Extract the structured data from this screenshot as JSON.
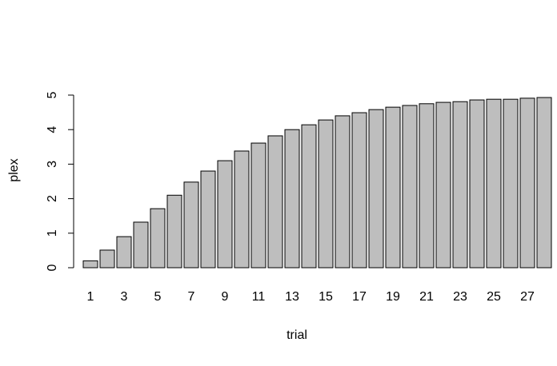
{
  "chart_data": {
    "type": "bar",
    "x_label": "trial",
    "y_label": "plex",
    "categories": [
      "1",
      null,
      "3",
      null,
      "5",
      null,
      "7",
      null,
      "9",
      null,
      "11",
      null,
      "13",
      null,
      "15",
      null,
      "17",
      null,
      "19",
      null,
      "21",
      null,
      "23",
      null,
      "25",
      null,
      "27",
      null
    ],
    "values": [
      0.2,
      0.51,
      0.9,
      1.32,
      1.71,
      2.1,
      2.48,
      2.8,
      3.1,
      3.38,
      3.61,
      3.82,
      4.0,
      4.14,
      4.28,
      4.4,
      4.49,
      4.58,
      4.65,
      4.7,
      4.75,
      4.79,
      4.81,
      4.86,
      4.88,
      4.88,
      4.91,
      4.93
    ],
    "color": "#bebebe",
    "ylim": [
      0,
      5
    ],
    "yticks": [
      0,
      1,
      2,
      3,
      4,
      5
    ]
  }
}
